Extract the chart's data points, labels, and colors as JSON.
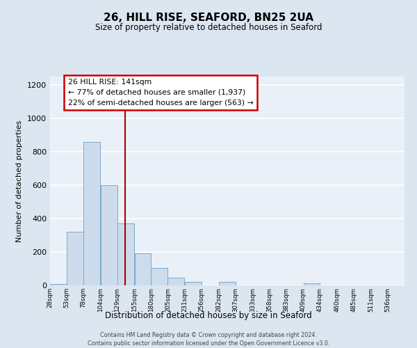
{
  "title": "26, HILL RISE, SEAFORD, BN25 2UA",
  "subtitle": "Size of property relative to detached houses in Seaford",
  "xlabel": "Distribution of detached houses by size in Seaford",
  "ylabel": "Number of detached properties",
  "bar_color": "#ccdcec",
  "bar_edge_color": "#7aaac8",
  "bin_starts": [
    28,
    53,
    78,
    104,
    129,
    155,
    180,
    205,
    231,
    256,
    282,
    307,
    333,
    358,
    383,
    409,
    434,
    460,
    485,
    511
  ],
  "bin_width": 25,
  "bar_heights": [
    10,
    320,
    860,
    600,
    370,
    190,
    105,
    47,
    20,
    0,
    20,
    0,
    0,
    0,
    0,
    13,
    0,
    0,
    0,
    0
  ],
  "xlabels": [
    "28sqm",
    "53sqm",
    "78sqm",
    "104sqm",
    "129sqm",
    "155sqm",
    "180sqm",
    "205sqm",
    "231sqm",
    "256sqm",
    "282sqm",
    "307sqm",
    "333sqm",
    "358sqm",
    "383sqm",
    "409sqm",
    "434sqm",
    "460sqm",
    "485sqm",
    "511sqm",
    "536sqm"
  ],
  "ylim": [
    0,
    1250
  ],
  "yticks": [
    0,
    200,
    400,
    600,
    800,
    1000,
    1200
  ],
  "vline_x": 141,
  "vline_color": "#aa0000",
  "annotation_title": "26 HILL RISE: 141sqm",
  "annotation_line1": "← 77% of detached houses are smaller (1,937)",
  "annotation_line2": "22% of semi-detached houses are larger (563) →",
  "annotation_box_color": "#ffffff",
  "annotation_box_edge": "#cc0000",
  "footer_line1": "Contains HM Land Registry data © Crown copyright and database right 2024.",
  "footer_line2": "Contains public sector information licensed under the Open Government Licence v3.0.",
  "background_color": "#dce6f0",
  "plot_bg_color": "#eaf0f8",
  "grid_color": "#ffffff"
}
